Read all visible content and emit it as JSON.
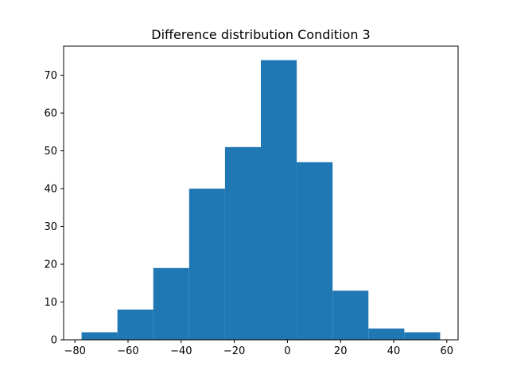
{
  "chart_data": {
    "type": "bar",
    "title": "Difference distribution Condition 3",
    "xlabel": "",
    "ylabel": "",
    "bins": [
      {
        "x0": -77.5,
        "x1": -64.0,
        "count": 2
      },
      {
        "x0": -64.0,
        "x1": -50.5,
        "count": 8
      },
      {
        "x0": -50.5,
        "x1": -37.0,
        "count": 19
      },
      {
        "x0": -37.0,
        "x1": -23.5,
        "count": 40
      },
      {
        "x0": -23.5,
        "x1": -10.0,
        "count": 51
      },
      {
        "x0": -10.0,
        "x1": 3.5,
        "count": 74
      },
      {
        "x0": 3.5,
        "x1": 17.0,
        "count": 47
      },
      {
        "x0": 17.0,
        "x1": 30.5,
        "count": 13
      },
      {
        "x0": 30.5,
        "x1": 44.0,
        "count": 3
      },
      {
        "x0": 44.0,
        "x1": 57.5,
        "count": 2
      }
    ],
    "xlim": [
      -84.25,
      64.25
    ],
    "ylim": [
      0,
      77.7
    ],
    "xticks": [
      -80,
      -60,
      -40,
      -20,
      0,
      20,
      40,
      60
    ],
    "xtick_labels": [
      "−80",
      "−60",
      "−40",
      "−20",
      "0",
      "20",
      "40",
      "60"
    ],
    "yticks": [
      0,
      10,
      20,
      30,
      40,
      50,
      60,
      70
    ],
    "ytick_labels": [
      "0",
      "10",
      "20",
      "30",
      "40",
      "50",
      "60",
      "70"
    ],
    "bar_color": "#1f77b4",
    "grid": false,
    "legend": "none"
  }
}
